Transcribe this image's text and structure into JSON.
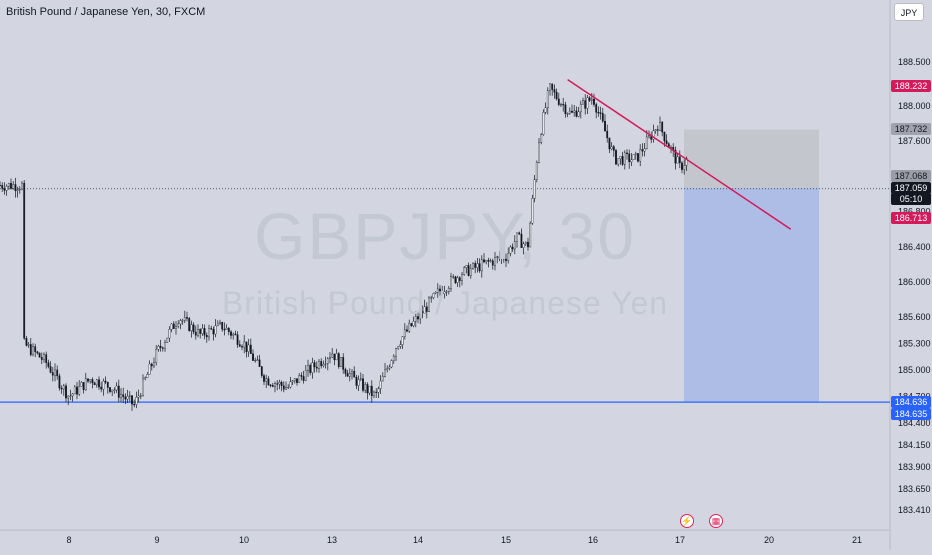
{
  "header": {
    "title": "British Pound / Japanese Yen, 30, FXCM",
    "currency_button": "JPY"
  },
  "watermark": {
    "symbol": "GBPJPY, 30",
    "name": "British Pound / Japanese Yen"
  },
  "price_tags": {
    "alert_high": "188.232",
    "target_box_top": "187.732",
    "entry": "187.068",
    "current_price": "187.059",
    "countdown": "05:10",
    "trend_line": "186.713",
    "support_top": "184.636",
    "support_bottom": "184.635"
  },
  "colors": {
    "background": "#d3d6e0",
    "candles": "#131722",
    "trend_line": "#d41a5a",
    "support_line": "#2962ff",
    "stop_zone": "#c4c6ce",
    "profit_zone": "#adbde6"
  },
  "icons": [
    "lightning-icon",
    "economic-calendar-icon"
  ],
  "chart_data": {
    "type": "candlestick",
    "title": "British Pound / Japanese Yen, 30, FXCM",
    "x_ticks": [
      "8",
      "9",
      "10",
      "13",
      "14",
      "15",
      "16",
      "17",
      "20",
      "21"
    ],
    "y_ticks": [
      "183.410",
      "183.650",
      "183.900",
      "184.150",
      "184.400",
      "184.700",
      "185.000",
      "185.300",
      "185.600",
      "186.000",
      "186.400",
      "186.800",
      "187.600",
      "188.000",
      "188.500"
    ],
    "ylim": [
      183.3,
      188.9
    ],
    "price_path": [
      [
        "7 12:00",
        185.3
      ],
      [
        "7 18:00",
        185.1
      ],
      [
        "8 00:00",
        184.7
      ],
      [
        "8 06:00",
        184.9
      ],
      [
        "8 12:00",
        184.8
      ],
      [
        "8 18:00",
        184.6
      ],
      [
        "9 00:00",
        185.2
      ],
      [
        "9 06:00",
        185.6
      ],
      [
        "9 12:00",
        185.4
      ],
      [
        "9 18:00",
        185.5
      ],
      [
        "10 00:00",
        185.3
      ],
      [
        "10 06:00",
        184.9
      ],
      [
        "10 12:00",
        184.8
      ],
      [
        "10 18:00",
        185.0
      ],
      [
        "13 00:00",
        185.2
      ],
      [
        "13 06:00",
        184.9
      ],
      [
        "13 12:00",
        184.7
      ],
      [
        "13 18:00",
        185.3
      ],
      [
        "14 00:00",
        185.6
      ],
      [
        "14 06:00",
        185.9
      ],
      [
        "14 12:00",
        186.1
      ],
      [
        "14 18:00",
        186.2
      ],
      [
        "15 00:00",
        186.3
      ],
      [
        "15 03:00",
        186.5
      ],
      [
        "15 06:00",
        186.4
      ],
      [
        "15 09:00",
        187.6
      ],
      [
        "15 12:00",
        188.2
      ],
      [
        "15 18:00",
        187.9
      ],
      [
        "16 00:00",
        188.1
      ],
      [
        "16 06:00",
        187.4
      ],
      [
        "16 12:00",
        187.4
      ],
      [
        "16 18:00",
        187.8
      ],
      [
        "17 00:00",
        187.3
      ],
      [
        "17 06:00",
        187.6
      ],
      [
        "17 12:00",
        186.9
      ],
      [
        "17 18:00",
        187.1
      ]
    ],
    "annotations": {
      "trend_line": {
        "from": [
          "15 17:00",
          188.3
        ],
        "to": [
          "20 06:00",
          186.6
        ]
      },
      "support_line": {
        "price": 184.636
      },
      "short_position": {
        "entry": 187.068,
        "stop": 187.732,
        "target": 184.636
      }
    }
  }
}
